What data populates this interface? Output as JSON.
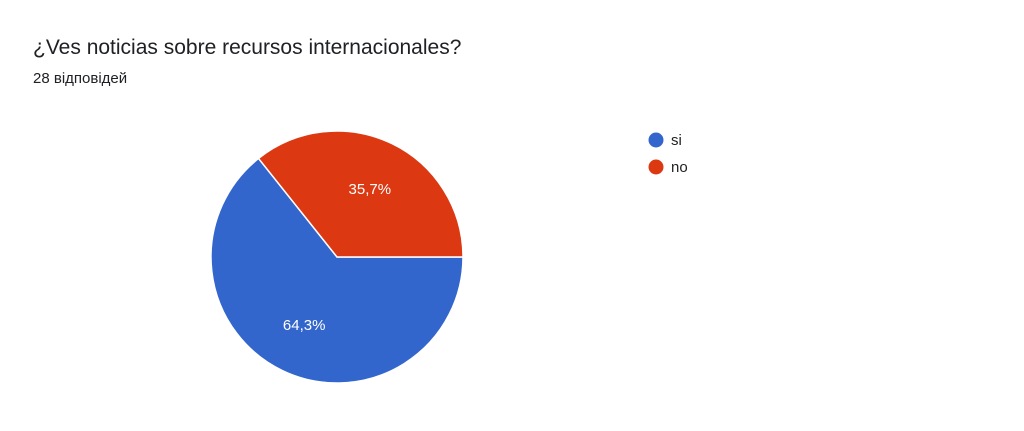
{
  "title": "¿Ves noticias sobre recursos internacionales?",
  "subtitle": "28 відповідей",
  "chart_data": {
    "type": "pie",
    "categories": [
      "si",
      "no"
    ],
    "values": [
      64.3,
      35.7
    ],
    "labels": [
      "64,3%",
      "35,7%"
    ],
    "colors": [
      "#3366cc",
      "#dc3912"
    ],
    "legend": "right"
  }
}
